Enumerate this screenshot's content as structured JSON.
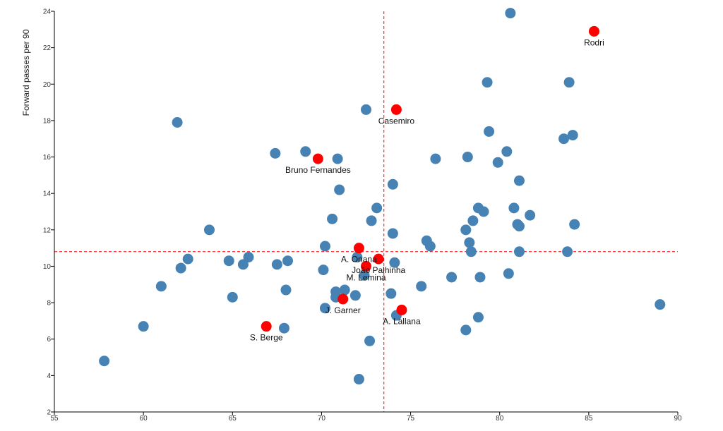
{
  "chart_data": {
    "type": "scatter",
    "ylabel": "Forward passes per 90",
    "xlabel": "",
    "xlim": [
      55,
      90
    ],
    "ylim": [
      2,
      24
    ],
    "xticks": [
      55,
      60,
      65,
      70,
      75,
      80,
      85,
      90
    ],
    "yticks": [
      2,
      4,
      6,
      8,
      10,
      12,
      14,
      16,
      18,
      20,
      22,
      24
    ],
    "reference_lines": {
      "x": 73.5,
      "y": 10.8
    },
    "colors": {
      "default": "#4682b4",
      "highlight": "#ff0000",
      "reference": "#ff0000"
    },
    "series": [
      {
        "highlight": false,
        "points": [
          [
            57.8,
            4.8
          ],
          [
            60.0,
            6.7
          ],
          [
            61.0,
            8.9
          ],
          [
            61.9,
            17.9
          ],
          [
            62.1,
            9.9
          ],
          [
            62.5,
            10.4
          ],
          [
            63.7,
            12.0
          ],
          [
            64.8,
            10.3
          ],
          [
            65.0,
            8.3
          ],
          [
            65.6,
            10.1
          ],
          [
            65.9,
            10.5
          ],
          [
            67.4,
            16.2
          ],
          [
            67.5,
            10.1
          ],
          [
            67.9,
            6.6
          ],
          [
            68.0,
            8.7
          ],
          [
            68.1,
            10.3
          ],
          [
            69.1,
            16.3
          ],
          [
            70.1,
            9.8
          ],
          [
            70.2,
            7.7
          ],
          [
            70.2,
            11.1
          ],
          [
            70.6,
            12.6
          ],
          [
            70.8,
            8.3
          ],
          [
            70.8,
            8.6
          ],
          [
            70.9,
            15.9
          ],
          [
            71.0,
            14.2
          ],
          [
            71.3,
            8.7
          ],
          [
            71.9,
            8.4
          ],
          [
            72.0,
            10.5
          ],
          [
            72.1,
            3.8
          ],
          [
            72.4,
            9.5
          ],
          [
            72.5,
            18.6
          ],
          [
            72.7,
            5.9
          ],
          [
            72.8,
            12.5
          ],
          [
            73.1,
            13.2
          ],
          [
            73.9,
            8.5
          ],
          [
            74.0,
            14.5
          ],
          [
            74.0,
            11.8
          ],
          [
            74.1,
            10.2
          ],
          [
            74.2,
            7.3
          ],
          [
            75.6,
            8.9
          ],
          [
            75.9,
            11.4
          ],
          [
            76.1,
            11.1
          ],
          [
            76.4,
            15.9
          ],
          [
            77.3,
            9.4
          ],
          [
            78.1,
            12.0
          ],
          [
            78.1,
            6.5
          ],
          [
            78.2,
            16.0
          ],
          [
            78.3,
            11.3
          ],
          [
            78.4,
            10.8
          ],
          [
            78.5,
            12.5
          ],
          [
            78.8,
            13.2
          ],
          [
            78.8,
            7.2
          ],
          [
            78.9,
            9.4
          ],
          [
            79.1,
            13.0
          ],
          [
            79.3,
            20.1
          ],
          [
            79.4,
            17.4
          ],
          [
            79.9,
            15.7
          ],
          [
            80.4,
            16.3
          ],
          [
            80.5,
            9.6
          ],
          [
            80.6,
            23.9
          ],
          [
            80.8,
            13.2
          ],
          [
            81.0,
            12.3
          ],
          [
            81.1,
            12.2
          ],
          [
            81.1,
            10.8
          ],
          [
            81.1,
            14.7
          ],
          [
            81.7,
            12.8
          ],
          [
            83.6,
            17.0
          ],
          [
            83.8,
            10.8
          ],
          [
            83.9,
            20.1
          ],
          [
            84.1,
            17.2
          ],
          [
            84.2,
            12.3
          ],
          [
            89.0,
            7.9
          ]
        ]
      },
      {
        "highlight": true,
        "points": [
          {
            "label": "Rodri",
            "x": 85.3,
            "y": 22.9
          },
          {
            "label": "Casemiro",
            "x": 74.2,
            "y": 18.6
          },
          {
            "label": "Bruno Fernandes",
            "x": 69.8,
            "y": 15.9
          },
          {
            "label": "A. Onana",
            "x": 72.1,
            "y": 11.0
          },
          {
            "label": "João Palhinha",
            "x": 73.2,
            "y": 10.4
          },
          {
            "label": "M. Lemina",
            "x": 72.5,
            "y": 10.0
          },
          {
            "label": "J. Garner",
            "x": 71.2,
            "y": 8.2
          },
          {
            "label": "A. Lallana",
            "x": 74.5,
            "y": 7.6
          },
          {
            "label": "S. Berge",
            "x": 66.9,
            "y": 6.7
          }
        ]
      }
    ]
  }
}
